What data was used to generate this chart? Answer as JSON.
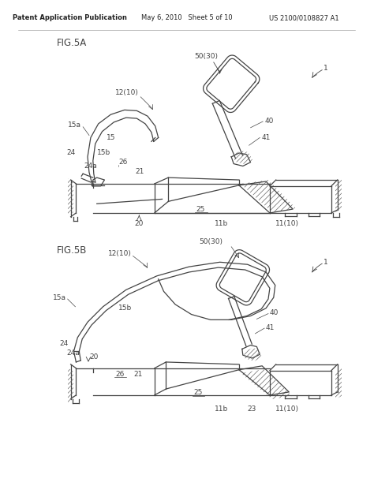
{
  "header_left": "Patent Application Publication",
  "header_mid": "May 6, 2010   Sheet 5 of 10",
  "header_right": "US 2100/0108827 A1",
  "fig5a_label": "FIG.5A",
  "fig5b_label": "FIG.5B",
  "bg_color": "#ffffff",
  "lc": "#444444",
  "lw": 0.9,
  "fs": 6.5,
  "hfs": 6.0,
  "fls": 8.5
}
